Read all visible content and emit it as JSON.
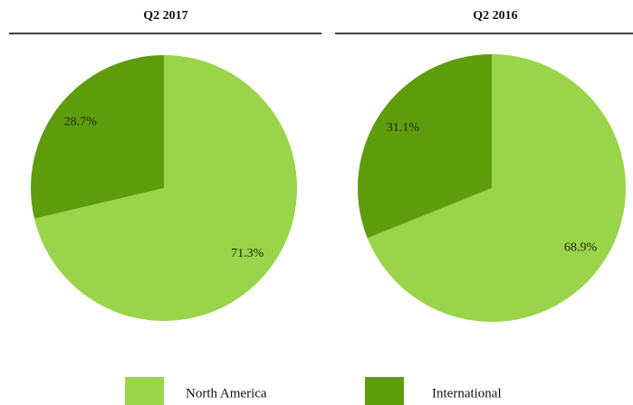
{
  "chart_data": [
    {
      "type": "pie",
      "title": "Q2 2017",
      "categories": [
        "North America",
        "International"
      ],
      "values": [
        71.3,
        28.7
      ],
      "value_labels": [
        "71.3%",
        "28.7%"
      ],
      "colors": [
        "#99d44a",
        "#5e9c0c"
      ]
    },
    {
      "type": "pie",
      "title": "Q2 2016",
      "categories": [
        "North America",
        "International"
      ],
      "values": [
        68.9,
        31.1
      ],
      "value_labels": [
        "68.9%",
        "31.1%"
      ],
      "colors": [
        "#99d44a",
        "#5e9c0c"
      ]
    }
  ]
}
